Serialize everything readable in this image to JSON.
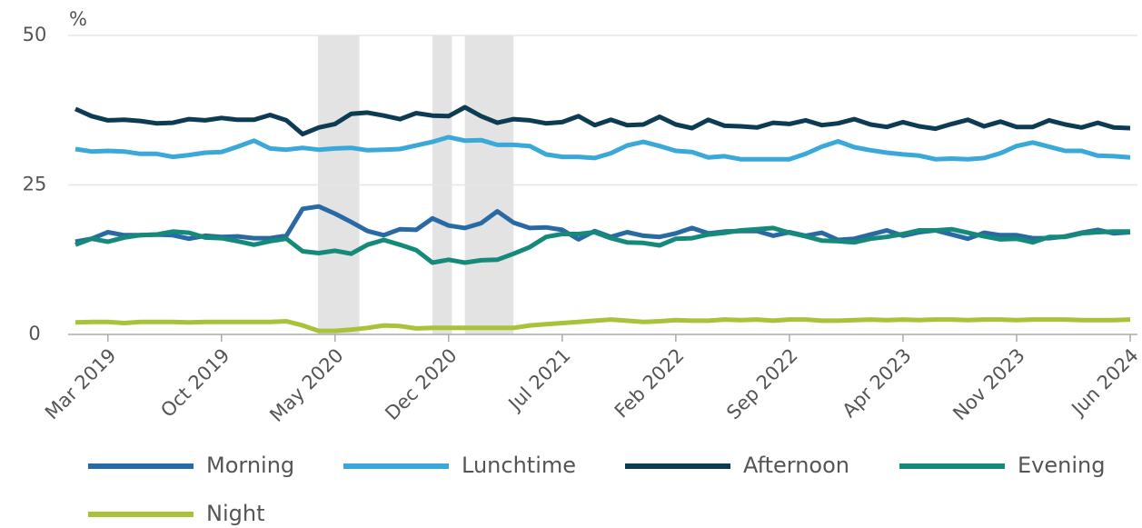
{
  "chart_data": {
    "type": "line",
    "y_unit": "%",
    "categories": [
      null,
      null,
      "Mar 2019",
      null,
      null,
      null,
      null,
      null,
      null,
      "Oct 2019",
      null,
      null,
      null,
      null,
      null,
      null,
      "May 2020",
      null,
      null,
      null,
      null,
      null,
      null,
      "Dec 2020",
      null,
      null,
      null,
      null,
      null,
      null,
      "Jul 2021",
      null,
      null,
      null,
      null,
      null,
      null,
      "Feb 2022",
      null,
      null,
      null,
      null,
      null,
      null,
      "Sep 2022",
      null,
      null,
      null,
      null,
      null,
      null,
      "Apr 2023",
      null,
      null,
      null,
      null,
      null,
      null,
      "Nov 2023",
      null,
      null,
      null,
      null,
      null,
      null,
      "Jun 2024"
    ],
    "shaded_periods": [
      [
        14.95,
        17.5
      ],
      [
        22,
        23.2
      ],
      [
        24,
        27
      ]
    ],
    "ylim": [
      0,
      50
    ],
    "yticks": [
      0,
      25,
      50
    ],
    "grid": true,
    "series": [
      {
        "name": "Morning",
        "color": "#2a6aa4",
        "values": [
          15.5,
          16,
          17.1,
          16.6,
          16.6,
          16.7,
          16.6,
          16,
          16.5,
          16.3,
          16.4,
          16.1,
          16.1,
          16.5,
          21,
          21.4,
          20.2,
          18.8,
          17.3,
          16.6,
          17.6,
          17.5,
          19.4,
          18.2,
          17.8,
          18.6,
          20.6,
          18.7,
          17.8,
          17.9,
          17.5,
          15.9,
          17.3,
          16.3,
          17.1,
          16.5,
          16.3,
          16.9,
          17.8,
          16.9,
          17.2,
          17.3,
          17.3,
          16.5,
          17.1,
          16.5,
          17,
          15.8,
          16,
          16.7,
          17.4,
          16.5,
          17.1,
          17.4,
          16.7,
          16,
          17,
          16.6,
          16.6,
          16.1,
          16.1,
          16.4,
          17,
          17.5,
          16.9,
          17.1
        ]
      },
      {
        "name": "Lunchtime",
        "color": "#3aa8d8",
        "values": [
          31,
          30.6,
          30.7,
          30.6,
          30.2,
          30.2,
          29.7,
          30,
          30.4,
          30.5,
          31.4,
          32.4,
          31.1,
          30.9,
          31.2,
          30.9,
          31.1,
          31.2,
          30.8,
          30.9,
          31,
          31.6,
          32.2,
          33,
          32.4,
          32.5,
          31.7,
          31.7,
          31.5,
          30.1,
          29.7,
          29.7,
          29.5,
          30.3,
          31.6,
          32.2,
          31.5,
          30.7,
          30.5,
          29.6,
          29.8,
          29.3,
          29.3,
          29.3,
          29.3,
          30.2,
          31.4,
          32.3,
          31.3,
          30.8,
          30.4,
          30.1,
          29.9,
          29.3,
          29.4,
          29.3,
          29.5,
          30.3,
          31.5,
          32.1,
          31.4,
          30.7,
          30.7,
          29.9,
          29.8,
          29.6
        ]
      },
      {
        "name": "Afternoon",
        "color": "#0d3b54",
        "values": [
          37.7,
          36.5,
          35.8,
          35.9,
          35.7,
          35.3,
          35.4,
          36,
          35.8,
          36.2,
          35.9,
          35.9,
          36.7,
          35.8,
          33.5,
          34.6,
          35.2,
          36.9,
          37.1,
          36.6,
          36,
          37,
          36.6,
          36.5,
          38,
          36.5,
          35.4,
          36,
          35.8,
          35.3,
          35.5,
          36.5,
          35,
          35.9,
          35,
          35.1,
          36.4,
          35.1,
          34.5,
          35.9,
          34.9,
          34.8,
          34.6,
          35.4,
          35.2,
          35.8,
          35,
          35.3,
          36,
          35.1,
          34.7,
          35.5,
          34.8,
          34.4,
          35.2,
          35.9,
          34.8,
          35.6,
          34.7,
          34.7,
          35.8,
          35.1,
          34.6,
          35.4,
          34.6,
          34.5
        ]
      },
      {
        "name": "Evening",
        "color": "#168a7a",
        "values": [
          15,
          16,
          15.5,
          16.2,
          16.6,
          16.7,
          17.2,
          17,
          16.2,
          16.1,
          15.6,
          15,
          15.6,
          16,
          13.9,
          13.6,
          14,
          13.5,
          15,
          15.8,
          15,
          14.1,
          12,
          12.5,
          12,
          12.4,
          12.5,
          13.5,
          14.6,
          16.3,
          16.8,
          16.8,
          17.1,
          16.1,
          15.4,
          15.3,
          14.9,
          16,
          16.1,
          16.7,
          17,
          17.4,
          17.6,
          17.8,
          17,
          16.4,
          15.7,
          15.6,
          15.4,
          16,
          16.3,
          16.8,
          17.4,
          17.4,
          17.6,
          17,
          16.4,
          15.9,
          16,
          15.4,
          16.3,
          16.3,
          16.9,
          17.1,
          17.2,
          17.2
        ]
      },
      {
        "name": "Night",
        "color": "#a8c23a",
        "values": [
          2,
          2.1,
          2.1,
          1.9,
          2.1,
          2.1,
          2.1,
          2,
          2.1,
          2.1,
          2.1,
          2.1,
          2.1,
          2.2,
          1.5,
          0.6,
          0.6,
          0.8,
          1.1,
          1.5,
          1.4,
          1,
          1.1,
          1.1,
          1.1,
          1.1,
          1.1,
          1.1,
          1.5,
          1.7,
          1.9,
          2.1,
          2.3,
          2.5,
          2.3,
          2.1,
          2.2,
          2.4,
          2.3,
          2.3,
          2.5,
          2.4,
          2.5,
          2.3,
          2.5,
          2.5,
          2.3,
          2.3,
          2.4,
          2.5,
          2.4,
          2.5,
          2.4,
          2.5,
          2.5,
          2.4,
          2.5,
          2.5,
          2.4,
          2.5,
          2.5,
          2.5,
          2.4,
          2.4,
          2.4,
          2.5
        ]
      }
    ]
  }
}
